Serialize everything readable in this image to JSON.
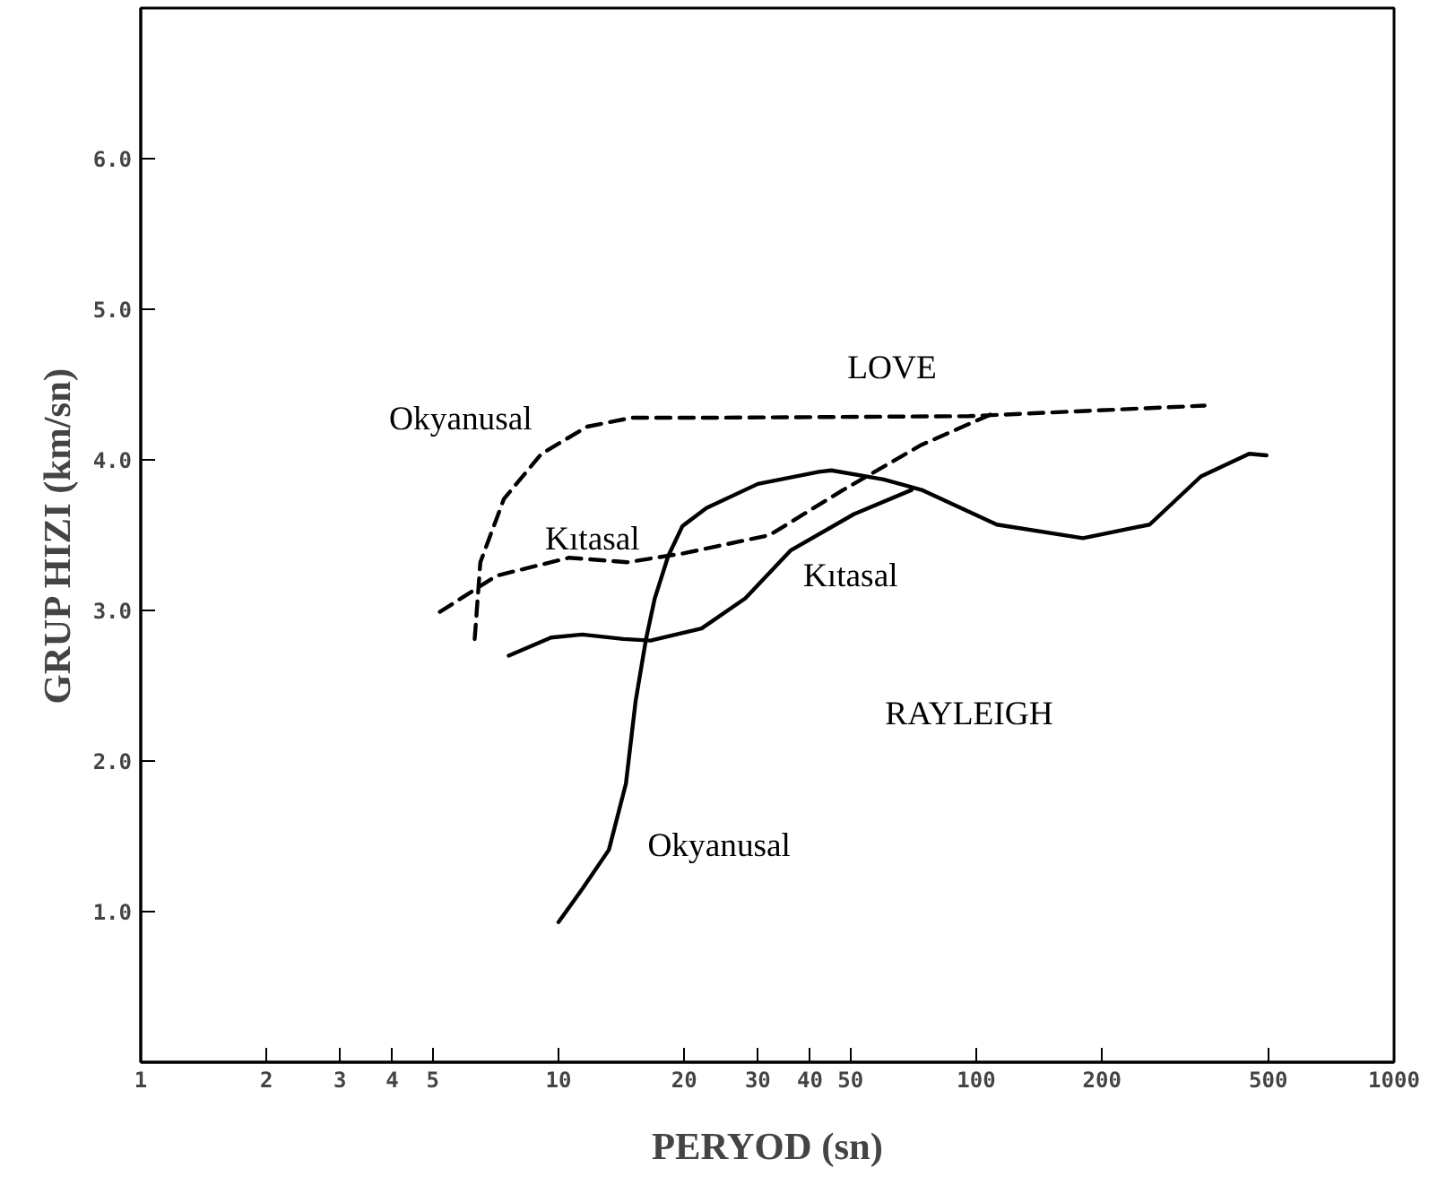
{
  "chart_data": {
    "type": "line",
    "xlabel": "PERYOD (sn)",
    "ylabel": "GRUP HIZI (km/sn)",
    "log": "x",
    "grid": false,
    "marker": "none",
    "xlim": [
      1,
      1000
    ],
    "ylim": [
      0,
      7
    ],
    "xticks": [
      1,
      2,
      3,
      4,
      5,
      10,
      20,
      30,
      40,
      50,
      100,
      200,
      500,
      1000
    ],
    "yticks": [
      {
        "value": 1,
        "label": "1.0"
      },
      {
        "value": 2,
        "label": "2.0"
      },
      {
        "value": 3,
        "label": "3.0"
      },
      {
        "value": 4,
        "label": "4.0"
      },
      {
        "value": 5,
        "label": "5.0"
      },
      {
        "value": 6,
        "label": "6.0"
      }
    ],
    "series": [
      {
        "name": "Okyanusal",
        "color": "#000000",
        "line_style": "dashed",
        "x": [
          6.3,
          6.5,
          7.4,
          9.1,
          11.7,
          15,
          24,
          96,
          352
        ],
        "values": [
          2.81,
          3.32,
          3.74,
          4.04,
          4.22,
          4.28,
          4.28,
          4.29,
          4.36
        ]
      },
      {
        "name": "Kıtasal",
        "color": "#000000",
        "line_style": "dashed",
        "x": [
          5.2,
          7.1,
          10.6,
          14.6,
          20,
          32,
          48,
          74,
          108
        ],
        "values": [
          2.99,
          3.23,
          3.35,
          3.32,
          3.38,
          3.5,
          3.8,
          4.1,
          4.3
        ]
      },
      {
        "name": "Okyanusal",
        "color": "#000000",
        "line_style": "solid",
        "x": [
          10,
          11.4,
          13.2,
          14.5,
          15.3,
          16.2,
          17,
          18.3,
          19.8,
          22.6,
          30,
          42,
          45,
          60,
          74,
          112,
          180,
          260,
          345,
          450,
          495
        ],
        "values": [
          0.93,
          1.15,
          1.41,
          1.85,
          2.4,
          2.81,
          3.08,
          3.36,
          3.56,
          3.68,
          3.84,
          3.92,
          3.93,
          3.87,
          3.8,
          3.57,
          3.48,
          3.57,
          3.89,
          4.04,
          4.03
        ]
      },
      {
        "name": "Kıtasal",
        "color": "#000000",
        "line_style": "solid",
        "x": [
          7.6,
          9.6,
          11.4,
          14.3,
          16.6,
          22,
          28,
          36,
          51,
          70
        ],
        "values": [
          2.7,
          2.82,
          2.84,
          2.81,
          2.8,
          2.88,
          3.08,
          3.4,
          3.64,
          3.8
        ]
      }
    ],
    "annotations": [
      "LOVE",
      "RAYLEIGH"
    ]
  }
}
